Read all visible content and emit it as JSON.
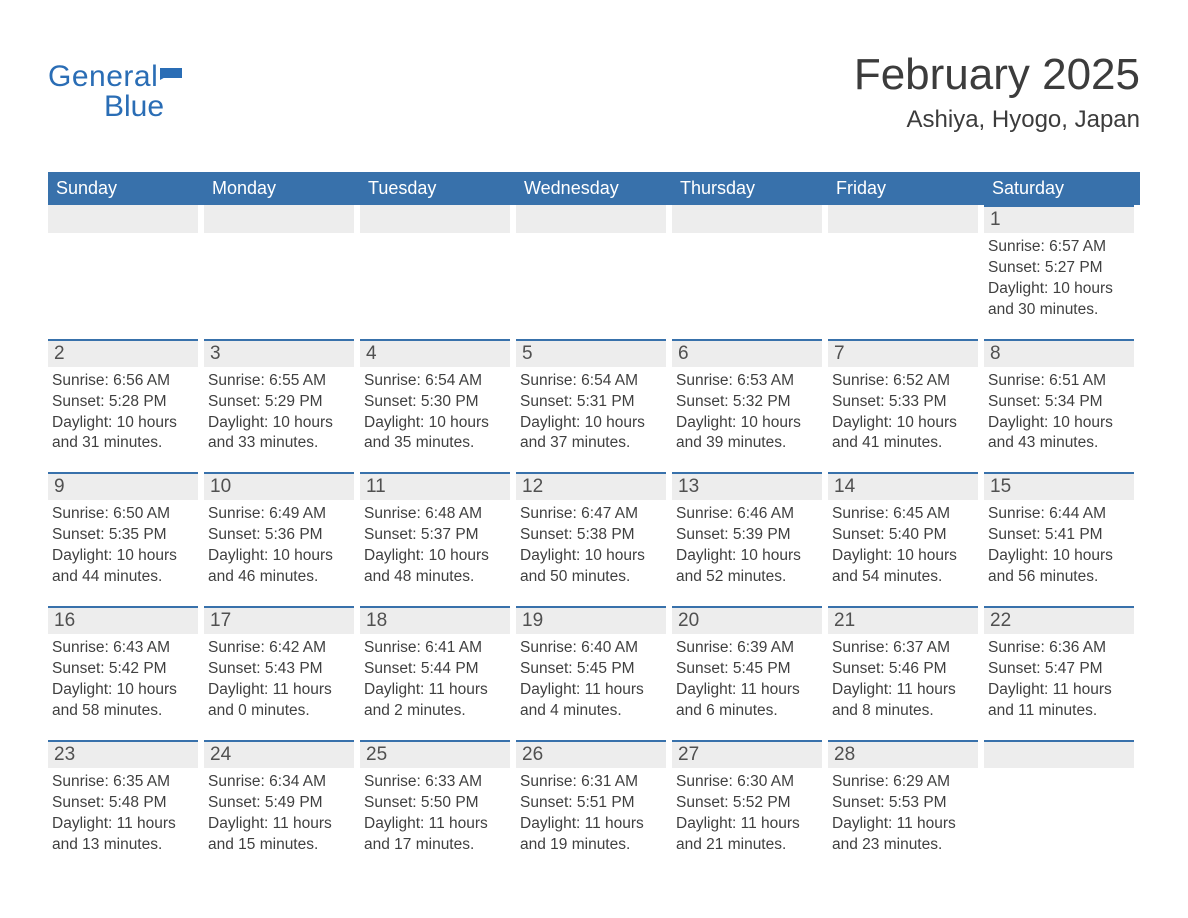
{
  "brand": {
    "line1": "General",
    "line2": "Blue",
    "color": "#2a6db5"
  },
  "title": "February 2025",
  "location": "Ashiya, Hyogo, Japan",
  "colors": {
    "header_bg": "#3871ab",
    "header_text": "#ffffff",
    "band_bg": "#ededed",
    "band_border": "#3871ab",
    "text": "#404040",
    "title_text": "#3c3c3c",
    "page_bg": "#ffffff"
  },
  "typography": {
    "title_fontsize": 44,
    "location_fontsize": 24,
    "weekday_fontsize": 18,
    "daynum_fontsize": 19,
    "body_fontsize": 15.5
  },
  "weekdays": [
    "Sunday",
    "Monday",
    "Tuesday",
    "Wednesday",
    "Thursday",
    "Friday",
    "Saturday"
  ],
  "labels": {
    "sunrise": "Sunrise:",
    "sunset": "Sunset:",
    "daylight": "Daylight:"
  },
  "weeks": [
    [
      null,
      null,
      null,
      null,
      null,
      null,
      {
        "n": "1",
        "sunrise": "6:57 AM",
        "sunset": "5:27 PM",
        "dl_h": "10",
        "dl_m": "30"
      }
    ],
    [
      {
        "n": "2",
        "sunrise": "6:56 AM",
        "sunset": "5:28 PM",
        "dl_h": "10",
        "dl_m": "31"
      },
      {
        "n": "3",
        "sunrise": "6:55 AM",
        "sunset": "5:29 PM",
        "dl_h": "10",
        "dl_m": "33"
      },
      {
        "n": "4",
        "sunrise": "6:54 AM",
        "sunset": "5:30 PM",
        "dl_h": "10",
        "dl_m": "35"
      },
      {
        "n": "5",
        "sunrise": "6:54 AM",
        "sunset": "5:31 PM",
        "dl_h": "10",
        "dl_m": "37"
      },
      {
        "n": "6",
        "sunrise": "6:53 AM",
        "sunset": "5:32 PM",
        "dl_h": "10",
        "dl_m": "39"
      },
      {
        "n": "7",
        "sunrise": "6:52 AM",
        "sunset": "5:33 PM",
        "dl_h": "10",
        "dl_m": "41"
      },
      {
        "n": "8",
        "sunrise": "6:51 AM",
        "sunset": "5:34 PM",
        "dl_h": "10",
        "dl_m": "43"
      }
    ],
    [
      {
        "n": "9",
        "sunrise": "6:50 AM",
        "sunset": "5:35 PM",
        "dl_h": "10",
        "dl_m": "44"
      },
      {
        "n": "10",
        "sunrise": "6:49 AM",
        "sunset": "5:36 PM",
        "dl_h": "10",
        "dl_m": "46"
      },
      {
        "n": "11",
        "sunrise": "6:48 AM",
        "sunset": "5:37 PM",
        "dl_h": "10",
        "dl_m": "48"
      },
      {
        "n": "12",
        "sunrise": "6:47 AM",
        "sunset": "5:38 PM",
        "dl_h": "10",
        "dl_m": "50"
      },
      {
        "n": "13",
        "sunrise": "6:46 AM",
        "sunset": "5:39 PM",
        "dl_h": "10",
        "dl_m": "52"
      },
      {
        "n": "14",
        "sunrise": "6:45 AM",
        "sunset": "5:40 PM",
        "dl_h": "10",
        "dl_m": "54"
      },
      {
        "n": "15",
        "sunrise": "6:44 AM",
        "sunset": "5:41 PM",
        "dl_h": "10",
        "dl_m": "56"
      }
    ],
    [
      {
        "n": "16",
        "sunrise": "6:43 AM",
        "sunset": "5:42 PM",
        "dl_h": "10",
        "dl_m": "58"
      },
      {
        "n": "17",
        "sunrise": "6:42 AM",
        "sunset": "5:43 PM",
        "dl_h": "11",
        "dl_m": "0"
      },
      {
        "n": "18",
        "sunrise": "6:41 AM",
        "sunset": "5:44 PM",
        "dl_h": "11",
        "dl_m": "2"
      },
      {
        "n": "19",
        "sunrise": "6:40 AM",
        "sunset": "5:45 PM",
        "dl_h": "11",
        "dl_m": "4"
      },
      {
        "n": "20",
        "sunrise": "6:39 AM",
        "sunset": "5:45 PM",
        "dl_h": "11",
        "dl_m": "6"
      },
      {
        "n": "21",
        "sunrise": "6:37 AM",
        "sunset": "5:46 PM",
        "dl_h": "11",
        "dl_m": "8"
      },
      {
        "n": "22",
        "sunrise": "6:36 AM",
        "sunset": "5:47 PM",
        "dl_h": "11",
        "dl_m": "11"
      }
    ],
    [
      {
        "n": "23",
        "sunrise": "6:35 AM",
        "sunset": "5:48 PM",
        "dl_h": "11",
        "dl_m": "13"
      },
      {
        "n": "24",
        "sunrise": "6:34 AM",
        "sunset": "5:49 PM",
        "dl_h": "11",
        "dl_m": "15"
      },
      {
        "n": "25",
        "sunrise": "6:33 AM",
        "sunset": "5:50 PM",
        "dl_h": "11",
        "dl_m": "17"
      },
      {
        "n": "26",
        "sunrise": "6:31 AM",
        "sunset": "5:51 PM",
        "dl_h": "11",
        "dl_m": "19"
      },
      {
        "n": "27",
        "sunrise": "6:30 AM",
        "sunset": "5:52 PM",
        "dl_h": "11",
        "dl_m": "21"
      },
      {
        "n": "28",
        "sunrise": "6:29 AM",
        "sunset": "5:53 PM",
        "dl_h": "11",
        "dl_m": "23"
      },
      null
    ]
  ]
}
